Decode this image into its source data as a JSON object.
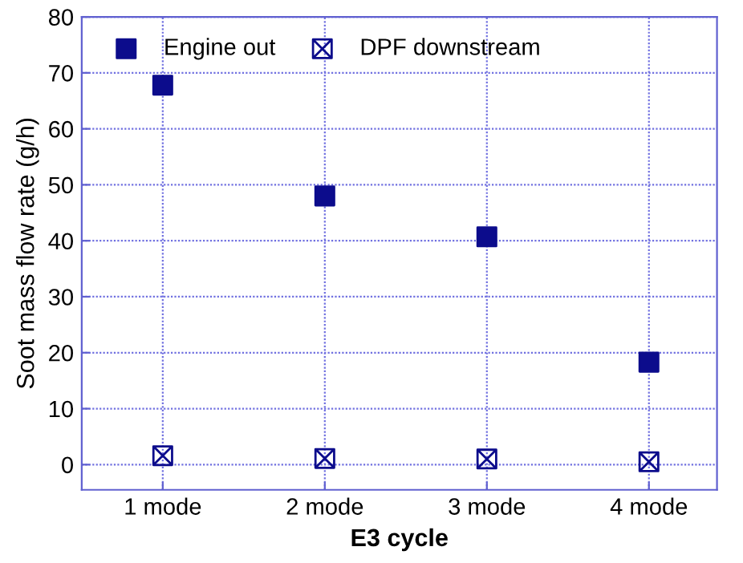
{
  "chart_data": {
    "type": "scatter",
    "xlabel": "E3 cycle",
    "ylabel": "Soot mass flow rate (g/h)",
    "categories": [
      "1 mode",
      "2 mode",
      "3 mode",
      "4 mode"
    ],
    "series": [
      {
        "name": "Engine out",
        "color": "#0c0c8c",
        "marker": "square",
        "values": [
          67.8,
          48.0,
          40.7,
          18.3
        ]
      },
      {
        "name": "DPF downstream",
        "color": "#0c0c8c",
        "marker": "cross",
        "values": [
          1.6,
          1.1,
          1.0,
          0.5
        ]
      }
    ],
    "ylim": [
      -4.5,
      80
    ],
    "yticks": [
      0,
      10,
      20,
      30,
      40,
      50,
      60,
      70,
      80
    ],
    "grid": true,
    "legend": "top left"
  }
}
